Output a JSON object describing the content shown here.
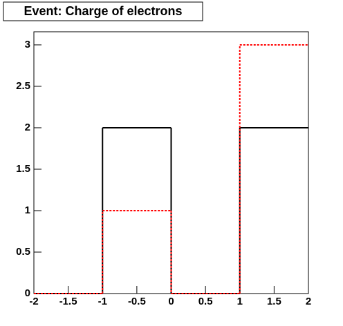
{
  "chart_data": {
    "type": "histogram",
    "title": "Event: Charge of electrons",
    "bins": [
      -2,
      -1,
      0,
      1,
      2
    ],
    "series": [
      {
        "color": "#000000",
        "dashed": false,
        "values": [
          0,
          2,
          0,
          2
        ]
      },
      {
        "color": "#ff0000",
        "dashed": true,
        "values": [
          0,
          1,
          0,
          3
        ]
      }
    ],
    "xlim": [
      -2,
      2
    ],
    "xticks": [
      -2,
      -1.5,
      -1,
      -0.5,
      0,
      0.5,
      1,
      1.5,
      2
    ],
    "ylim": [
      0,
      3.158
    ],
    "yticks": [
      0,
      0.5,
      1,
      1.5,
      2,
      2.5,
      3
    ]
  }
}
